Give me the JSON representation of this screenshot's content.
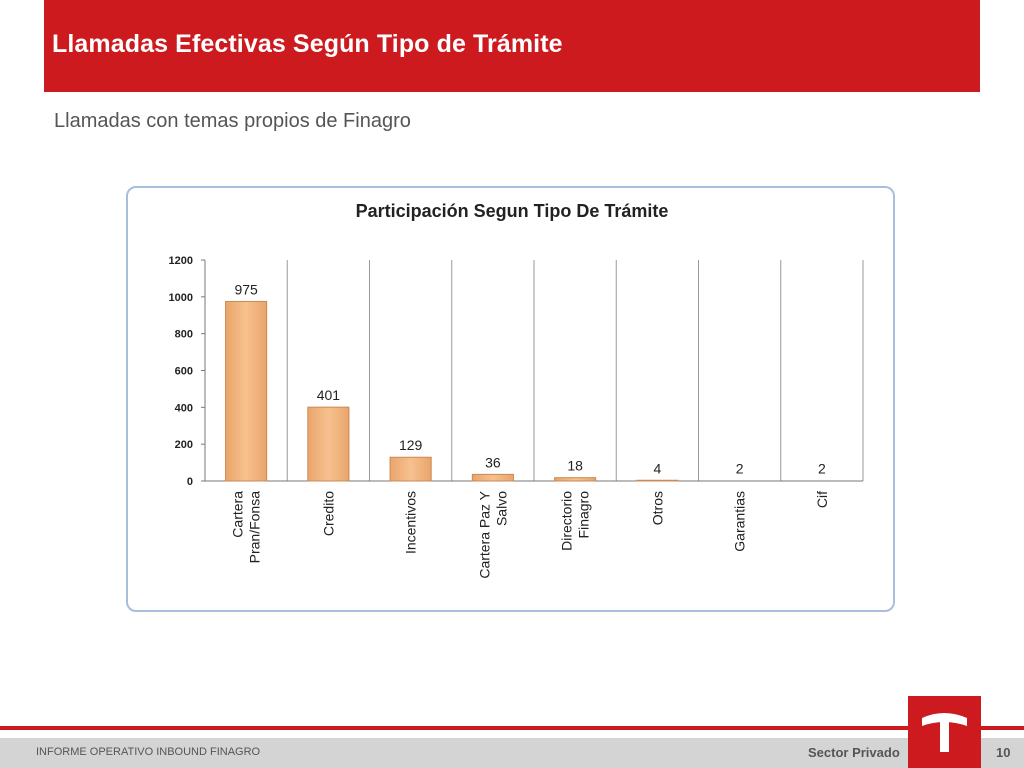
{
  "header": {
    "title": "Llamadas Efectivas Según Tipo de Trámite"
  },
  "subtitle": "Llamadas con temas propios de Finagro",
  "footer": {
    "left": "INFORME OPERATIVO INBOUND FINAGRO",
    "right": "Sector Privado",
    "page": "10"
  },
  "logo": {
    "icon": "t-logo-icon"
  },
  "colors": {
    "brand": "#cc1a1f",
    "bar_fill": "#f7c18f",
    "bar_edge": "#c98a55",
    "frame": "#a7bedd"
  },
  "chart_data": {
    "type": "bar",
    "title": "Participación Segun Tipo De Trámite",
    "categories": [
      [
        "Cartera",
        "Pran/Fonsa"
      ],
      [
        "Credito"
      ],
      [
        "Incentivos"
      ],
      [
        "Cartera Paz Y",
        "Salvo"
      ],
      [
        "Directorio",
        "Finagro"
      ],
      [
        "Otros"
      ],
      [
        "Garantias"
      ],
      [
        "Cif"
      ]
    ],
    "values": [
      975,
      401,
      129,
      36,
      18,
      4,
      2,
      2
    ],
    "data_labels": [
      "975",
      "401",
      "129",
      "36",
      "18",
      "4",
      "2",
      "2"
    ],
    "ylim": [
      0,
      1200
    ],
    "yticks": [
      0,
      200,
      400,
      600,
      800,
      1000,
      1200
    ],
    "xlabel": "",
    "ylabel": "",
    "grid": "vertical",
    "legend": "none"
  }
}
